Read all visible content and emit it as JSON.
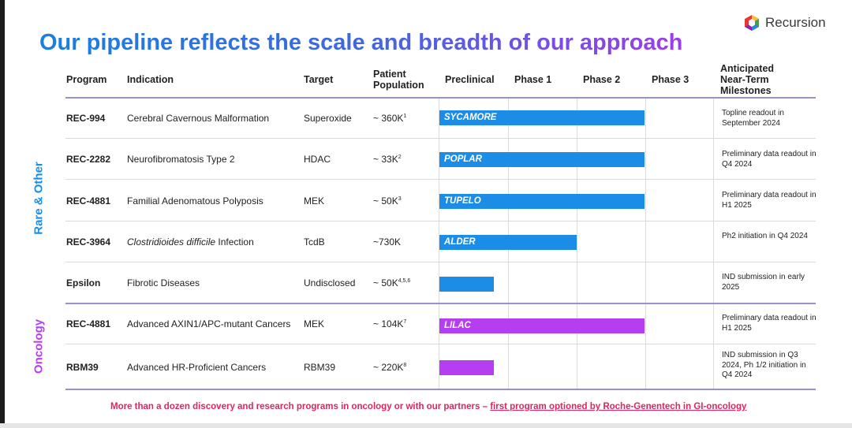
{
  "title": "Our pipeline reflects the scale and breadth of our approach",
  "logo": {
    "text": "Recursion"
  },
  "headers": {
    "program": "Program",
    "indication": "Indication",
    "target": "Target",
    "population": [
      "Patient",
      "Population"
    ],
    "preclinical": "Preclinical",
    "phase1": "Phase 1",
    "phase2": "Phase 2",
    "phase3": "Phase 3",
    "milestones": [
      "Anticipated",
      "Near-Term",
      "Milestones"
    ]
  },
  "groups": {
    "rare": "Rare & Other",
    "oncology": "Oncology"
  },
  "rows": [
    {
      "program": "REC-994",
      "indication": "Cerebral Cavernous Malformation",
      "indication_italic": "",
      "target": "Superoxide",
      "population": "~ 360K",
      "sup": "1",
      "bar_label": "SYCAMORE",
      "color": "#1b8de6",
      "progress": 0.75,
      "milestone": "Topline readout in September 2024"
    },
    {
      "program": "REC-2282",
      "indication": "Neurofibromatosis Type 2",
      "indication_italic": "",
      "target": "HDAC",
      "population": "~ 33K",
      "sup": "2",
      "bar_label": "POPLAR",
      "color": "#1b8de6",
      "progress": 0.75,
      "milestone": "Preliminary data readout in Q4 2024"
    },
    {
      "program": "REC-4881",
      "indication": "Familial Adenomatous Polyposis",
      "indication_italic": "",
      "target": "MEK",
      "population": "~ 50K",
      "sup": "3",
      "bar_label": "TUPELO",
      "color": "#1b8de6",
      "progress": 0.75,
      "milestone": "Preliminary data readout in H1 2025"
    },
    {
      "program": "REC-3964",
      "indication": " Infection",
      "indication_italic": "Clostridioides difficile",
      "target": "TcdB",
      "population": "~730K",
      "sup": "",
      "bar_label": "ALDER",
      "color": "#1b8de6",
      "progress": 0.5,
      "milestone": "Ph2 initiation in Q4 2024"
    },
    {
      "program": "Epsilon",
      "indication": "Fibrotic Diseases",
      "indication_italic": "",
      "target": "Undisclosed",
      "population": "~ 50K",
      "sup": "4,5,6",
      "bar_label": "",
      "color": "#1b8de6",
      "progress": 0.2,
      "milestone": "IND submission in early 2025"
    },
    {
      "program": "REC-4881",
      "indication": "Advanced AXIN1/APC-mutant Cancers",
      "indication_italic": "",
      "target": "MEK",
      "population": "~ 104K",
      "sup": "7",
      "bar_label": "LILAC",
      "color": "#b43ef0",
      "progress": 0.75,
      "milestone": "Preliminary data readout in H1 2025"
    },
    {
      "program": "RBM39",
      "indication": "Advanced HR-Proficient Cancers",
      "indication_italic": "",
      "target": "RBM39",
      "population": "~ 220K",
      "sup": "8",
      "bar_label": "",
      "color": "#b43ef0",
      "progress": 0.2,
      "milestone": "IND submission in Q3 2024, Ph 1/2 initiation in Q4 2024"
    }
  ],
  "colors": {
    "rare": "#1b8de6",
    "oncology": "#b43ef0",
    "footer": "#e0245e"
  },
  "footer": {
    "text": "More than a dozen discovery and research programs in oncology or with our partners – ",
    "link": "first program optioned by Roche-Genentech in GI-oncology"
  }
}
